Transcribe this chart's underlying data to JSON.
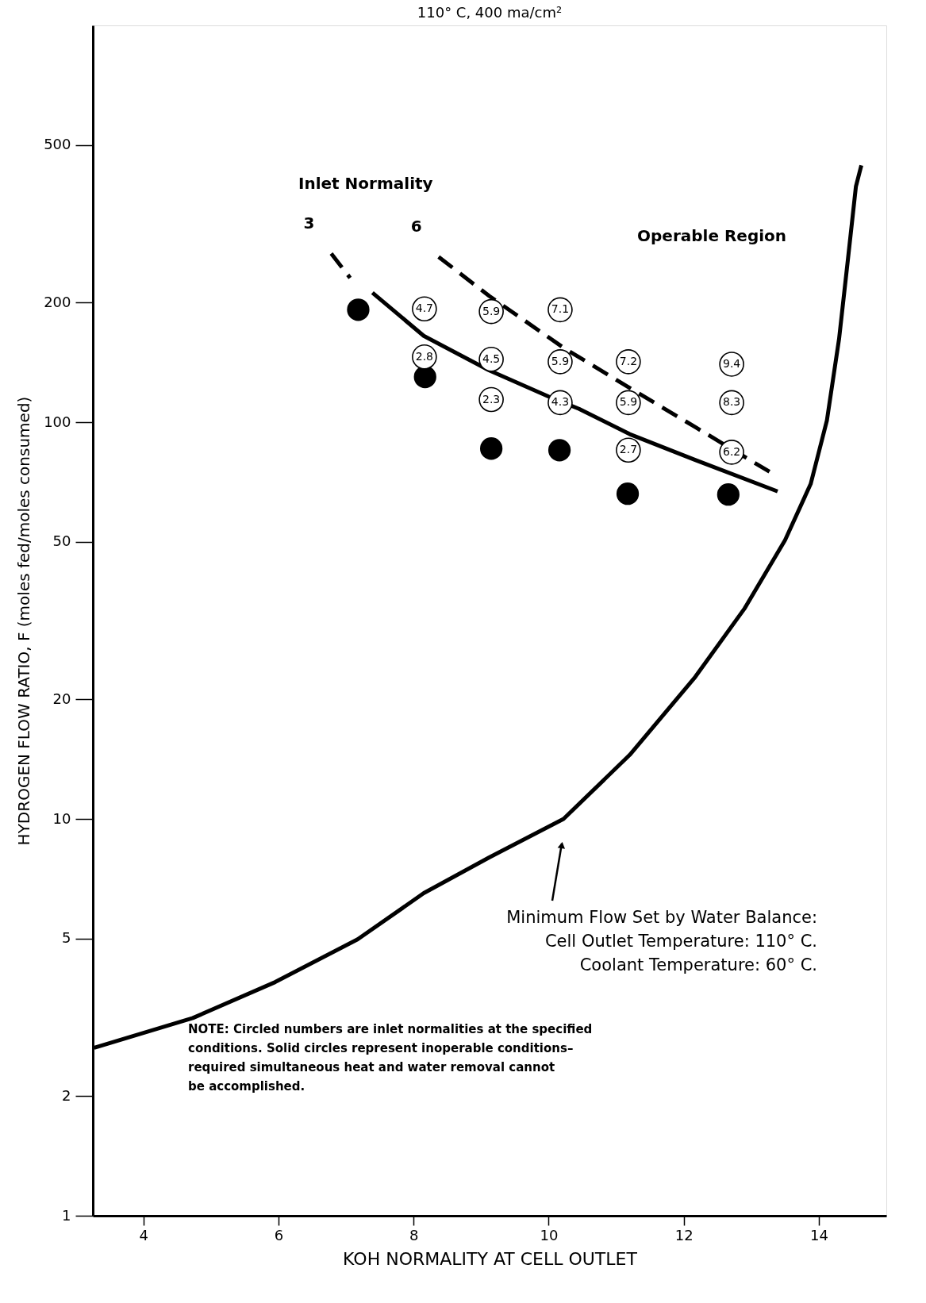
{
  "chart_data": {
    "type": "line",
    "title": "110° C, 400 ma/cm²",
    "xlabel": "KOH NORMALITY AT CELL OUTLET",
    "ylabel": "HYDROGEN FLOW RATIO, F (moles fed/moles consumed)",
    "xlim": [
      3.25,
      15
    ],
    "xticks": [
      4,
      6,
      8,
      10,
      12,
      14
    ],
    "ylim": [
      1,
      1000
    ],
    "log": "y",
    "yticks": [
      1,
      2,
      5,
      10,
      20,
      50,
      100,
      200,
      500
    ],
    "grid": false,
    "series": [
      {
        "color": "#000000",
        "line_style": "solid",
        "x": [
          3.27,
          4.73,
          5.95,
          7.17,
          8.15,
          9.12,
          10.22,
          11.2,
          12.17,
          12.9,
          13.5,
          13.88,
          14.12,
          14.3,
          14.43,
          14.55,
          14.63
        ],
        "values": [
          2.65,
          3.15,
          3.88,
          4.97,
          6.5,
          8.0,
          10,
          14.5,
          22.8,
          33.9,
          50.4,
          69.9,
          101,
          162,
          256,
          393,
          444
        ]
      },
      {
        "name": "3",
        "color": "#000000",
        "line_style": "dashed",
        "x": [
          6.78,
          7.06
        ],
        "values": [
          266,
          231
        ]
      },
      {
        "color": "#000000",
        "line_style": "solid",
        "x": [
          7.39,
          8.15,
          9.12,
          10.0,
          10.45,
          11.2,
          12.17,
          13.39
        ],
        "values": [
          212,
          165,
          135,
          116,
          108,
          93.3,
          80.3,
          66.9
        ]
      },
      {
        "name": "6",
        "color": "#000000",
        "line_style": "dashed",
        "x": [
          8.37,
          9.12,
          10.22,
          11.2,
          12.17,
          13.27
        ],
        "values": [
          261,
          208,
          154,
          122,
          97.2,
          75
        ]
      },
      {
        "type": "scatter",
        "marker": "circle",
        "color": "#000000",
        "x": [
          7.18,
          8.17,
          9.15,
          10.16,
          11.17,
          12.66
        ],
        "values": [
          192,
          130,
          85.8,
          85,
          66.0,
          65.7
        ]
      }
    ],
    "annotations": [
      "Inlet Normality",
      "Operable Region",
      "Minimum Flow Set by Water Balance:\nCell Outlet Temperature:  110° C.\nCoolant Temperature:        60° C.",
      "NOTE:  Circled numbers are inlet normalities at the specified\n           conditions.  Solid circles represent inoperable conditions–\n           required simultaneous heat and water removal cannot\n           be accomplished.",
      {
        "text": "4.7",
        "x": 8.16,
        "y": 193
      },
      {
        "text": "2.8",
        "x": 8.16,
        "y": 146
      },
      {
        "text": "5.9",
        "x": 9.15,
        "y": 190
      },
      {
        "text": "4.5",
        "x": 9.15,
        "y": 144
      },
      {
        "text": "2.3",
        "x": 9.15,
        "y": 114
      },
      {
        "text": "7.1",
        "x": 10.17,
        "y": 192
      },
      {
        "text": "5.9",
        "x": 10.17,
        "y": 142
      },
      {
        "text": "4.3",
        "x": 10.17,
        "y": 112
      },
      {
        "text": "7.2",
        "x": 11.18,
        "y": 142
      },
      {
        "text": "5.9",
        "x": 11.18,
        "y": 112
      },
      {
        "text": "2.7",
        "x": 11.18,
        "y": 85
      },
      {
        "text": "9.4",
        "x": 12.71,
        "y": 140
      },
      {
        "text": "8.3",
        "x": 12.71,
        "y": 112
      },
      {
        "text": "6.2",
        "x": 12.71,
        "y": 84
      }
    ]
  }
}
